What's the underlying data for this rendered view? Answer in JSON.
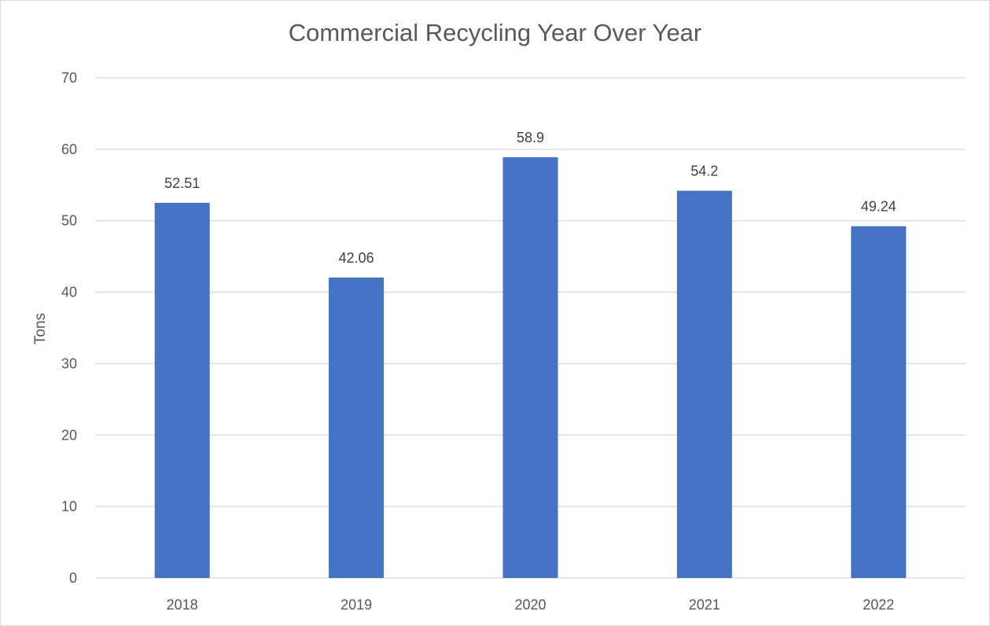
{
  "chart_data": {
    "type": "bar",
    "title": "Commercial Recycling Year Over Year",
    "xlabel": "",
    "ylabel": "Tons",
    "categories": [
      "2018",
      "2019",
      "2020",
      "2021",
      "2022"
    ],
    "values": [
      52.51,
      42.06,
      58.9,
      54.2,
      49.24
    ],
    "data_labels": [
      "52.51",
      "42.06",
      "58.9",
      "54.2",
      "49.24"
    ],
    "ylim": [
      0,
      70
    ],
    "y_ticks": [
      0,
      10,
      20,
      30,
      40,
      50,
      60,
      70
    ],
    "grid": true,
    "legend": "none",
    "colors": {
      "bar": "#4472C4",
      "grid": "#d9d9d9",
      "text": "#595959"
    }
  }
}
